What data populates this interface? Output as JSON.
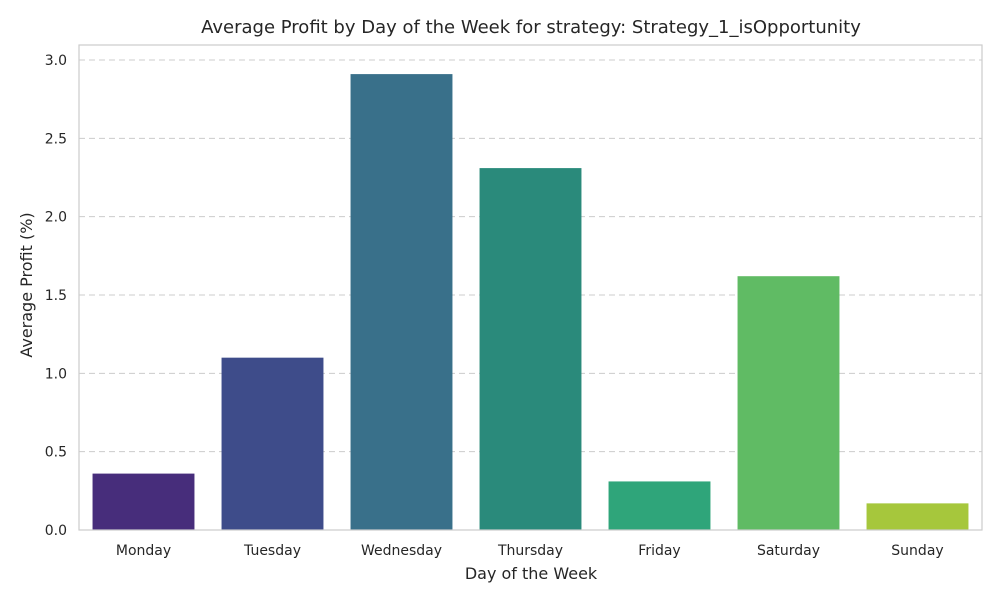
{
  "chart_data": {
    "type": "bar",
    "title": "Average Profit by Day of the Week for strategy: Strategy_1_isOpportunity",
    "xlabel": "Day of the Week",
    "ylabel": "Average Profit (%)",
    "categories": [
      "Monday",
      "Tuesday",
      "Wednesday",
      "Thursday",
      "Friday",
      "Saturday",
      "Sunday"
    ],
    "values": [
      0.36,
      1.1,
      2.91,
      2.31,
      0.31,
      1.62,
      0.17
    ],
    "ylim": [
      0,
      3.0
    ],
    "yticks": [
      0.0,
      0.5,
      1.0,
      1.5,
      2.0,
      2.5,
      3.0
    ],
    "ytick_labels": [
      "0.0",
      "0.5",
      "1.0",
      "1.5",
      "2.0",
      "2.5",
      "3.0"
    ],
    "grid": "y-dashed",
    "legend": "none",
    "colors": [
      "#472d7b",
      "#3e4c8a",
      "#39708a",
      "#2a8a7b",
      "#2fa57a",
      "#60bb64",
      "#a6c73c"
    ]
  }
}
